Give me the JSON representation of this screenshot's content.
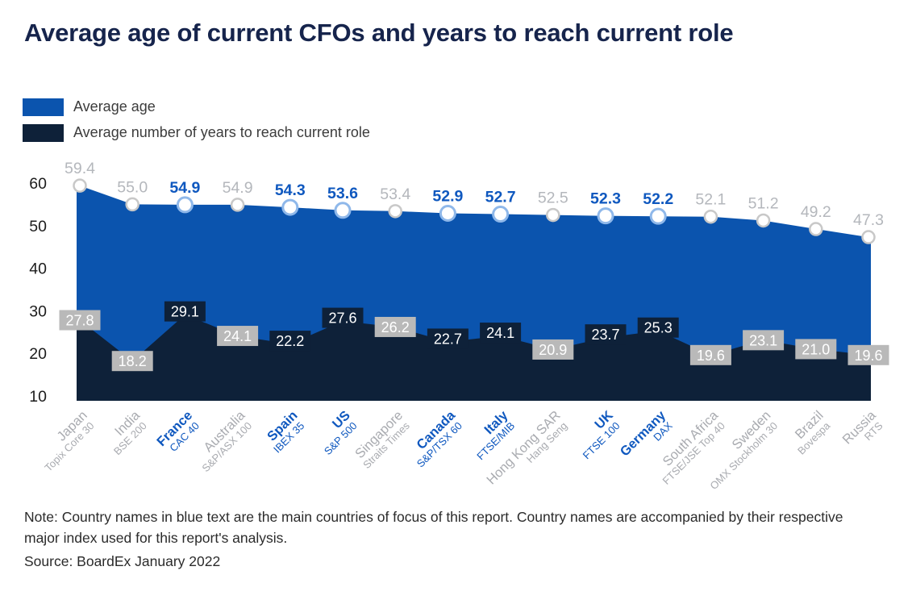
{
  "title": "Average age of current CFOs and years to reach current role",
  "legend": [
    {
      "label": "Average age",
      "color": "#0b54ae"
    },
    {
      "label": "Average number of years to reach current role",
      "color": "#0e2139"
    }
  ],
  "note": "Note: Country names in blue text are the main countries of focus of this report. Country names are accompanied by their respective major index used for this report's analysis.",
  "source": "Source: BoardEx January 2022",
  "colors": {
    "age_area": "#0b54ae",
    "years_area": "#0e2139",
    "focus_text_blue": "#0f58bf",
    "muted_label_gray": "#b4b7bc",
    "axis_label_gray": "#a9abb0",
    "badge_gray": "#b9b9b9",
    "badge_navy": "#0e2139",
    "badge_text": "#ffffff",
    "marker_fill": "#ffffff",
    "marker_ring_focus": "#8fb8ea",
    "marker_ring_muted": "#c8c8c8",
    "tick_text": "#1c1c1c"
  },
  "chart_data": {
    "type": "area",
    "categories": [
      {
        "country": "Japan",
        "index": "Topix Core 30",
        "focus": false
      },
      {
        "country": "India",
        "index": "BSE 200",
        "focus": false
      },
      {
        "country": "France",
        "index": "CAC 40",
        "focus": true
      },
      {
        "country": "Australia",
        "index": "S&P/ASX 100",
        "focus": false
      },
      {
        "country": "Spain",
        "index": "IBEX 35",
        "focus": true
      },
      {
        "country": "US",
        "index": "S&P 500",
        "focus": true
      },
      {
        "country": "Singapore",
        "index": "Straits Times",
        "focus": false
      },
      {
        "country": "Canada",
        "index": "S&P/TSX 60",
        "focus": true
      },
      {
        "country": "Italy",
        "index": "FTSE/MIB",
        "focus": true
      },
      {
        "country": "Hong Kong SAR",
        "index": "Hang Seng",
        "focus": false
      },
      {
        "country": "UK",
        "index": "FTSE 100",
        "focus": true
      },
      {
        "country": "Germany",
        "index": "DAX",
        "focus": true
      },
      {
        "country": "South Africa",
        "index": "FTSE/JSE Top 40",
        "focus": false
      },
      {
        "country": "Sweden",
        "index": "OMX Stockholm 30",
        "focus": false
      },
      {
        "country": "Brazil",
        "index": "Bovespa",
        "focus": false
      },
      {
        "country": "Russia",
        "index": "RTS",
        "focus": false
      }
    ],
    "series": [
      {
        "name": "Average age",
        "values": [
          59.4,
          55.0,
          54.9,
          54.9,
          54.3,
          53.6,
          53.4,
          52.9,
          52.7,
          52.5,
          52.3,
          52.2,
          52.1,
          51.2,
          49.2,
          47.3
        ]
      },
      {
        "name": "Average number of years to reach current role",
        "values": [
          27.8,
          18.2,
          29.1,
          24.1,
          22.2,
          27.6,
          26.2,
          22.7,
          24.1,
          20.9,
          23.7,
          25.3,
          19.6,
          23.1,
          21.0,
          19.6
        ]
      }
    ],
    "yticks": [
      60,
      50,
      40,
      30,
      20,
      10
    ],
    "ylim": [
      9,
      62
    ],
    "grid": false,
    "legend_position": "top-left"
  }
}
